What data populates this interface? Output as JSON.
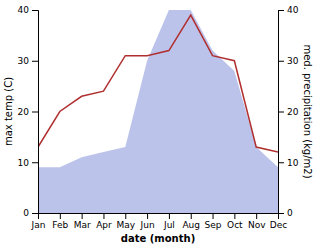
{
  "chart_data": {
    "type": "line",
    "categories": [
      "Jan",
      "Feb",
      "Mar",
      "Apr",
      "May",
      "Jun",
      "Jul",
      "Aug",
      "Sep",
      "Oct",
      "Nov",
      "Dec"
    ],
    "xlabel": "date (month)",
    "ylabel": "max temp (C)",
    "y2label": "med. precipitation (kg/m2)",
    "ylim": [
      0,
      40
    ],
    "yticks": [
      0,
      10,
      20,
      30,
      40
    ],
    "y2lim": [
      0,
      40
    ],
    "y2ticks": [
      0,
      10,
      20,
      30,
      40
    ],
    "grid": false,
    "series": [
      {
        "type": "area",
        "axis": "y2",
        "color": "#b0b8e8",
        "values": [
          9,
          9,
          11,
          12,
          13,
          30,
          40,
          40,
          32,
          28,
          13,
          9
        ]
      },
      {
        "type": "line",
        "color": "#b03030",
        "values": [
          13,
          20,
          23,
          24,
          31,
          31,
          32,
          39,
          31,
          30,
          13,
          12
        ]
      }
    ]
  }
}
